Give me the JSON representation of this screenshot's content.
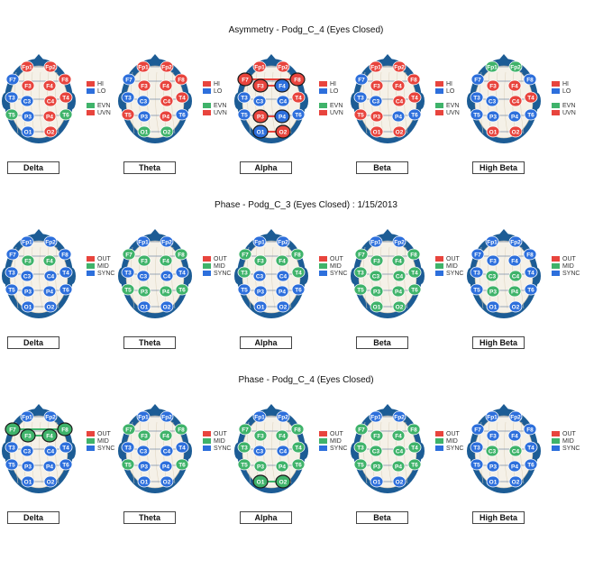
{
  "colors": {
    "red": "#e8443d",
    "blue": "#2d6fdc",
    "green": "#3fb36a",
    "head": "#1c5c95",
    "brain": "#f5f1e8"
  },
  "electrodes": [
    "Fp1",
    "Fp2",
    "F7",
    "F3",
    "F4",
    "F8",
    "T3",
    "C3",
    "C4",
    "T4",
    "T5",
    "P3",
    "P4",
    "T6",
    "O1",
    "O2"
  ],
  "sections": [
    {
      "title": "Asymmetry - Podg_C_4 (Eyes Closed)",
      "legend": [
        {
          "label": "HI",
          "color": "#e8443d"
        },
        {
          "label": "LO",
          "color": "#2d6fdc"
        },
        {
          "label": "",
          "color": ""
        },
        {
          "label": "EVN",
          "color": "#3fb36a"
        },
        {
          "label": "UVN",
          "color": "#e8443d"
        }
      ],
      "maps": [
        {
          "band": "Delta",
          "fill": [
            "r",
            "r",
            "b",
            "r",
            "r",
            "r",
            "b",
            "b",
            "r",
            "r",
            "g",
            "b",
            "r",
            "g",
            "b",
            "r"
          ],
          "hl": []
        },
        {
          "band": "Theta",
          "fill": [
            "r",
            "r",
            "b",
            "r",
            "r",
            "r",
            "b",
            "b",
            "r",
            "r",
            "r",
            "b",
            "r",
            "b",
            "g",
            "g"
          ],
          "hl": []
        },
        {
          "band": "Alpha",
          "fill": [
            "r",
            "r",
            "r",
            "r",
            "b",
            "r",
            "b",
            "b",
            "b",
            "r",
            "b",
            "r",
            "b",
            "b",
            "b",
            "r"
          ],
          "hl": [
            "F7",
            "F3",
            "F4",
            "F8",
            "P3",
            "P4",
            "O1",
            "O2"
          ]
        },
        {
          "band": "Beta",
          "fill": [
            "r",
            "r",
            "b",
            "r",
            "r",
            "r",
            "b",
            "b",
            "r",
            "r",
            "r",
            "r",
            "b",
            "b",
            "r",
            "r"
          ],
          "hl": []
        },
        {
          "band": "High Beta",
          "fill": [
            "g",
            "g",
            "b",
            "r",
            "r",
            "b",
            "b",
            "b",
            "r",
            "r",
            "b",
            "b",
            "b",
            "b",
            "r",
            "r"
          ],
          "hl": []
        }
      ]
    },
    {
      "title": "Phase - Podg_C_3 (Eyes Closed) : 1/15/2013",
      "legend": [
        {
          "label": "OUT",
          "color": "#e8443d"
        },
        {
          "label": "MID",
          "color": "#3fb36a"
        },
        {
          "label": "SYNC",
          "color": "#2d6fdc"
        }
      ],
      "maps": [
        {
          "band": "Delta",
          "fill": [
            "b",
            "b",
            "b",
            "g",
            "g",
            "b",
            "b",
            "b",
            "b",
            "b",
            "b",
            "b",
            "b",
            "b",
            "b",
            "b"
          ],
          "hl": []
        },
        {
          "band": "Theta",
          "fill": [
            "b",
            "b",
            "g",
            "g",
            "g",
            "g",
            "b",
            "b",
            "b",
            "b",
            "g",
            "g",
            "g",
            "g",
            "b",
            "b"
          ],
          "hl": []
        },
        {
          "band": "Alpha",
          "fill": [
            "b",
            "b",
            "g",
            "g",
            "g",
            "g",
            "g",
            "b",
            "b",
            "g",
            "b",
            "b",
            "b",
            "b",
            "b",
            "b"
          ],
          "hl": []
        },
        {
          "band": "Beta",
          "fill": [
            "b",
            "b",
            "g",
            "g",
            "g",
            "g",
            "g",
            "g",
            "g",
            "g",
            "g",
            "g",
            "g",
            "g",
            "g",
            "g"
          ],
          "hl": []
        },
        {
          "band": "High Beta",
          "fill": [
            "b",
            "b",
            "b",
            "b",
            "b",
            "b",
            "b",
            "g",
            "g",
            "b",
            "b",
            "g",
            "g",
            "b",
            "b",
            "b"
          ],
          "hl": []
        }
      ]
    },
    {
      "title": "Phase - Podg_C_4 (Eyes Closed)",
      "legend": [
        {
          "label": "OUT",
          "color": "#e8443d"
        },
        {
          "label": "MID",
          "color": "#3fb36a"
        },
        {
          "label": "SYNC",
          "color": "#2d6fdc"
        }
      ],
      "maps": [
        {
          "band": "Delta",
          "fill": [
            "b",
            "b",
            "g",
            "g",
            "g",
            "g",
            "b",
            "b",
            "b",
            "b",
            "b",
            "b",
            "b",
            "b",
            "b",
            "b"
          ],
          "hl": [
            "F7",
            "F3",
            "F4",
            "F8"
          ]
        },
        {
          "band": "Theta",
          "fill": [
            "b",
            "b",
            "g",
            "g",
            "g",
            "g",
            "b",
            "b",
            "b",
            "b",
            "g",
            "b",
            "b",
            "g",
            "b",
            "b"
          ],
          "hl": []
        },
        {
          "band": "Alpha",
          "fill": [
            "b",
            "b",
            "g",
            "g",
            "g",
            "g",
            "g",
            "b",
            "b",
            "g",
            "g",
            "g",
            "g",
            "g",
            "g",
            "g"
          ],
          "hl": [
            "O1",
            "O2"
          ]
        },
        {
          "band": "Beta",
          "fill": [
            "b",
            "b",
            "g",
            "g",
            "g",
            "g",
            "g",
            "g",
            "g",
            "g",
            "g",
            "g",
            "g",
            "g",
            "b",
            "b"
          ],
          "hl": []
        },
        {
          "band": "High Beta",
          "fill": [
            "b",
            "b",
            "b",
            "b",
            "b",
            "b",
            "b",
            "g",
            "g",
            "b",
            "b",
            "b",
            "b",
            "b",
            "b",
            "b"
          ],
          "hl": []
        }
      ]
    }
  ]
}
